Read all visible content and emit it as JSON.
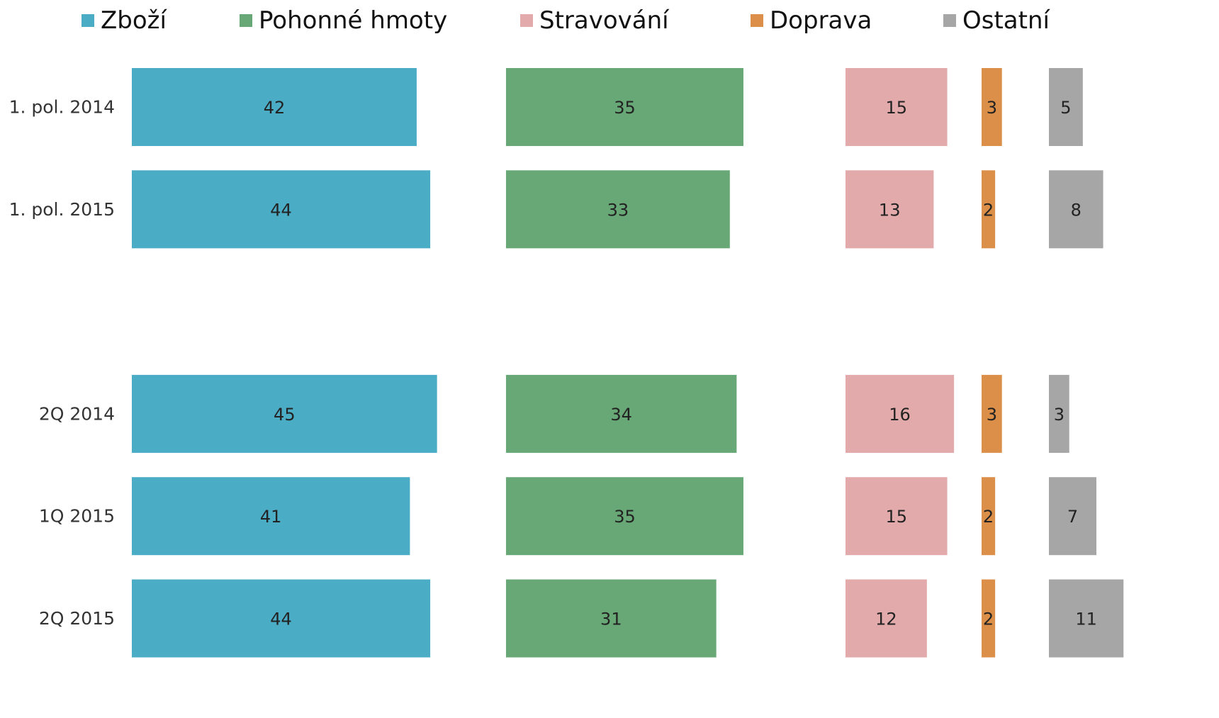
{
  "chart_data": {
    "type": "bar",
    "orientation": "horizontal",
    "legend": "top",
    "categories": [
      "1. pol. 2014",
      "1. pol. 2015",
      null,
      "2Q 2014",
      "1Q 2015",
      "2Q 2015"
    ],
    "series": [
      {
        "name": "Zboží",
        "color": "#4bacc6",
        "values": [
          42,
          44,
          null,
          45,
          41,
          44
        ]
      },
      {
        "name": "Pohonné hmoty",
        "color": "#68a776",
        "values": [
          35,
          33,
          null,
          34,
          35,
          31
        ]
      },
      {
        "name": "Stravování",
        "color": "#e2aaaa",
        "values": [
          15,
          13,
          null,
          16,
          15,
          12
        ]
      },
      {
        "name": "Doprava",
        "color": "#dc8f49",
        "values": [
          3,
          2,
          null,
          3,
          2,
          2
        ]
      },
      {
        "name": "Ostatní",
        "color": "#a6a6a6",
        "values": [
          5,
          8,
          null,
          3,
          7,
          11
        ]
      }
    ]
  }
}
